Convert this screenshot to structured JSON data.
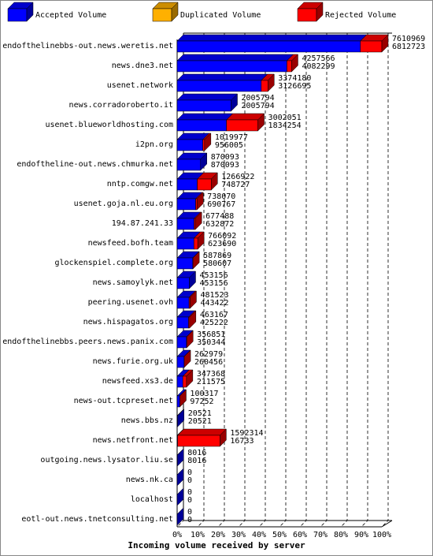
{
  "chart_data": {
    "type": "bar3d",
    "xlabel": "Incoming volume received by server",
    "categories": [
      "endofthelinebbs-out.news.weretis.net",
      "news.dne3.net",
      "usenet.network",
      "news.corradoroberto.it",
      "usenet.blueworldhosting.com",
      "i2pn.org",
      "endoftheline-out.news.chmurka.net",
      "nntp.comgw.net",
      "usenet.goja.nl.eu.org",
      "194.87.241.33",
      "newsfeed.bofh.team",
      "glockenspiel.complete.org",
      "news.samoylyk.net",
      "peering.usenet.ovh",
      "news.hispagatos.org",
      "endofthelinebbs.peers.news.panix.com",
      "news.furie.org.uk",
      "newsfeed.xs3.de",
      "news-out.tcpreset.net",
      "news.bbs.nz",
      "news.netfront.net",
      "outgoing.news.lysator.liu.se",
      "news.nk.ca",
      "localhost",
      "eotl-out.news.tnetconsulting.net"
    ],
    "series": [
      {
        "name": "Accepted Volume",
        "color": "#0000ff",
        "values": [
          6812723,
          4082299,
          3126695,
          2005794,
          1834254,
          956005,
          870093,
          748727,
          690767,
          632872,
          623690,
          580607,
          453156,
          443422,
          425222,
          350344,
          260456,
          211575,
          97252,
          20521,
          16733,
          8016,
          0,
          0,
          0
        ]
      },
      {
        "name": "Duplicated Volume",
        "color": "#ffb000"
      },
      {
        "name": "Rejected Volume",
        "color": "#ff0000",
        "values": [
          7610969,
          4257566,
          3374180,
          2005794,
          3002051,
          1019977,
          870093,
          1266922,
          738070,
          677488,
          766092,
          587869,
          453156,
          481523,
          463167,
          356851,
          262979,
          347368,
          100317,
          20521,
          1592314,
          8016,
          0,
          0,
          0
        ]
      }
    ],
    "xlim": [
      0,
      7610969
    ],
    "xticks": [
      {
        "value": 0,
        "label": "0%"
      },
      {
        "value": 761096.9,
        "label": "10%"
      },
      {
        "value": 1522193.8,
        "label": "20%"
      },
      {
        "value": 2283290.7,
        "label": "30%"
      },
      {
        "value": 3044387.6,
        "label": "40%"
      },
      {
        "value": 3805484.5,
        "label": "50%"
      },
      {
        "value": 4566581.4,
        "label": "60%"
      },
      {
        "value": 5327678.3,
        "label": "70%"
      },
      {
        "value": 6088775.2,
        "label": "80%"
      },
      {
        "value": 6849872.1,
        "label": "90%"
      },
      {
        "value": 7610969,
        "label": "100%"
      }
    ],
    "grid": true
  }
}
